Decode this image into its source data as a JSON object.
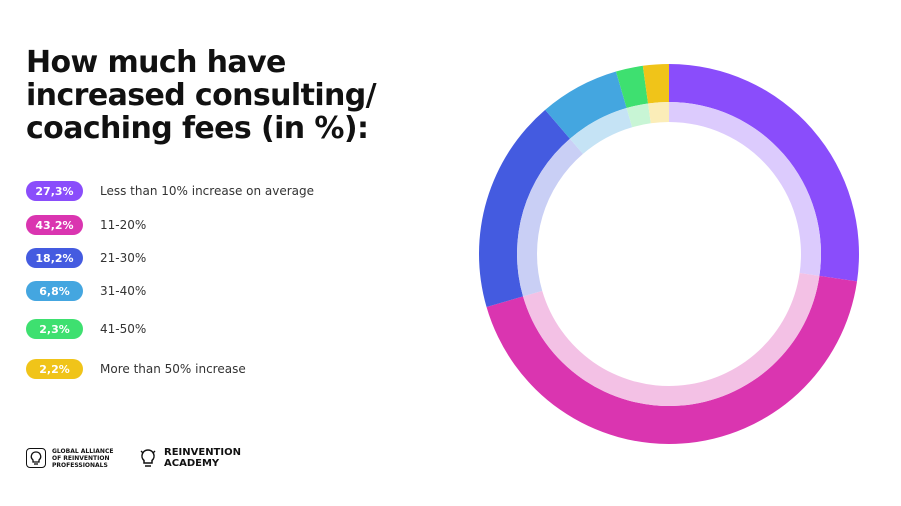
{
  "title": "How much have\nincreased consulting/\ncoaching fees (in %):",
  "chart_data": {
    "type": "pie",
    "style": "donut",
    "categories": [
      "Less than 10% increase on average",
      "11-20%",
      "21-30%",
      "31-40%",
      "41-50%",
      "More than 50% increase"
    ],
    "values": [
      27.3,
      43.2,
      18.2,
      6.8,
      2.3,
      2.2
    ],
    "value_labels": [
      "27,3%",
      "43,2%",
      "18,2%",
      "6,8%",
      "2,3%",
      "2,2%"
    ],
    "colors": [
      "#8a4dfb",
      "#da35b0",
      "#445be0",
      "#44a6e0",
      "#3ee070",
      "#f0c419"
    ],
    "inner_colors": [
      "#dccbfd",
      "#f3c1e5",
      "#c9cff5",
      "#c5e3f5",
      "#c8f5d5",
      "#fbedb8"
    ],
    "start_angle_deg": 0,
    "legend_position": "left"
  },
  "logos": {
    "gaorp": {
      "text": "GLOBAL ALLIANCE\nOF REINVENTION\nPROFESSIONALS",
      "icon": "lightbulb-icon"
    },
    "academy": {
      "text": "REINVENTION\nACADEMY",
      "icon": "lightbulb-icon"
    }
  }
}
